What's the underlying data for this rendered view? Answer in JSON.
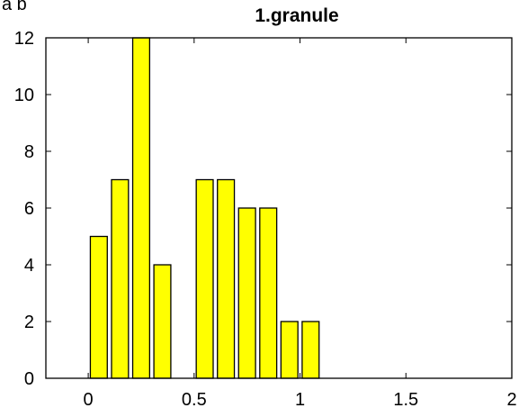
{
  "figure": {
    "corner_label": "a  b"
  },
  "chart_data": {
    "type": "bar",
    "title": "1.granule",
    "xlabel": "",
    "ylabel": "",
    "xlim": [
      -0.2,
      2
    ],
    "ylim": [
      0,
      12
    ],
    "x_ticks": [
      "0",
      "0.5",
      "1",
      "1.5",
      "2"
    ],
    "y_ticks": [
      "0",
      "2",
      "4",
      "6",
      "8",
      "10",
      "12"
    ],
    "bar_width": 0.08,
    "bar_color": "#ffff00",
    "edge_color": "#000000",
    "grid": false,
    "x": [
      0.05,
      0.15,
      0.25,
      0.35,
      0.45,
      0.55,
      0.65,
      0.75,
      0.85,
      0.95,
      1.05,
      1.15,
      1.25,
      1.35,
      1.45,
      1.55,
      1.65,
      1.75,
      1.85,
      1.95
    ],
    "values": [
      5,
      7,
      12,
      4,
      0,
      7,
      7,
      6,
      6,
      2,
      2,
      0,
      0,
      0,
      0,
      0,
      0,
      0,
      0,
      0
    ]
  }
}
